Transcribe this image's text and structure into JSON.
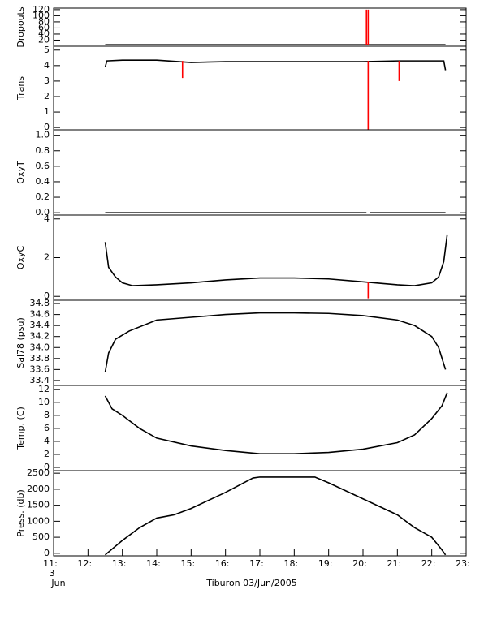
{
  "chart_data": [
    {
      "type": "line",
      "ylabel": "Dropouts",
      "xlim": [
        11,
        23
      ],
      "ylim": [
        0,
        125
      ],
      "yticks": [
        20,
        40,
        60,
        80,
        100,
        120
      ],
      "series": [
        {
          "color": "#000000",
          "x": [
            12.5,
            22.4
          ],
          "values": [
            5,
            5
          ]
        },
        {
          "color": "#ff0000",
          "x": [
            20.1,
            20.1,
            20.11,
            20.15,
            20.15
          ],
          "values": [
            5,
            120,
            null,
            5,
            120
          ]
        }
      ]
    },
    {
      "type": "line",
      "ylabel": "Trans",
      "xlim": [
        11,
        23
      ],
      "ylim": [
        -0.15,
        5.25
      ],
      "yticks": [
        0,
        1,
        2,
        3,
        4,
        5
      ],
      "series": [
        {
          "color": "#000000",
          "x": [
            12.5,
            12.55,
            13,
            14,
            15,
            16,
            17,
            18,
            19,
            20,
            21,
            22,
            22.35,
            22.4
          ],
          "values": [
            3.9,
            4.3,
            4.35,
            4.35,
            4.2,
            4.25,
            4.25,
            4.25,
            4.25,
            4.25,
            4.3,
            4.3,
            4.3,
            3.7
          ]
        },
        {
          "color": "#ff0000",
          "x": [
            14.75,
            14.75,
            14.76,
            20.15,
            20.15,
            20.16,
            21.05,
            21.05
          ],
          "values": [
            4.3,
            3.2,
            null,
            4.3,
            -0.15,
            null,
            4.3,
            3.0
          ]
        }
      ]
    },
    {
      "type": "line",
      "ylabel": "OxyT",
      "xlim": [
        11,
        23
      ],
      "ylim": [
        -0.03,
        1.07
      ],
      "yticks": [
        {
          "value": 0,
          "label": "0.0"
        },
        0.2,
        0.4,
        0.6,
        0.8,
        {
          "value": 1,
          "label": "1.0"
        }
      ],
      "series": [
        {
          "color": "#000000",
          "x": [
            12.5,
            20.1,
            20.15,
            20.2,
            22.4
          ],
          "values": [
            0,
            0,
            null,
            0,
            0
          ]
        }
      ]
    },
    {
      "type": "line",
      "ylabel": "OxyC",
      "xlim": [
        11,
        23
      ],
      "ylim": [
        -0.2,
        4.2
      ],
      "yticks": [
        0,
        2,
        4
      ],
      "series": [
        {
          "color": "#000000",
          "x": [
            12.5,
            12.6,
            12.8,
            13,
            13.3,
            14,
            15,
            16,
            17,
            18,
            19,
            20,
            21,
            21.5,
            22,
            22.2,
            22.35,
            22.45
          ],
          "values": [
            2.8,
            1.5,
            1.0,
            0.7,
            0.55,
            0.6,
            0.7,
            0.85,
            0.95,
            0.95,
            0.9,
            0.75,
            0.6,
            0.55,
            0.7,
            1.0,
            1.8,
            3.2
          ]
        },
        {
          "color": "#ff0000",
          "x": [
            20.15,
            20.15
          ],
          "values": [
            0.75,
            -0.1
          ]
        }
      ]
    },
    {
      "type": "line",
      "ylabel": "Sal78 (psu)",
      "xlim": [
        11,
        23
      ],
      "ylim": [
        33.31,
        34.86
      ],
      "yticks": [
        33.4,
        33.6,
        33.8,
        {
          "value": 34,
          "label": "34.0"
        },
        34.2,
        34.4,
        34.6,
        34.8
      ],
      "series": [
        {
          "color": "#000000",
          "x": [
            12.5,
            12.6,
            12.8,
            13.2,
            14,
            15,
            16,
            17,
            18,
            19,
            20,
            21,
            21.5,
            22,
            22.2,
            22.4
          ],
          "values": [
            33.55,
            33.9,
            34.15,
            34.3,
            34.5,
            34.55,
            34.6,
            34.63,
            34.63,
            34.62,
            34.58,
            34.5,
            34.4,
            34.2,
            34.0,
            33.6
          ]
        }
      ]
    },
    {
      "type": "line",
      "ylabel": "Temp. (C)",
      "xlim": [
        11,
        23
      ],
      "ylim": [
        -0.5,
        12.6
      ],
      "yticks": [
        0,
        2,
        4,
        6,
        8,
        10,
        12
      ],
      "series": [
        {
          "color": "#000000",
          "x": [
            12.5,
            12.7,
            13,
            13.5,
            14,
            15,
            16,
            17,
            18,
            19,
            20,
            21,
            21.5,
            22,
            22.3,
            22.45
          ],
          "values": [
            11,
            9,
            8,
            6,
            4.5,
            3.3,
            2.6,
            2.1,
            2.1,
            2.3,
            2.8,
            3.8,
            5,
            7.5,
            9.5,
            11.5
          ]
        }
      ]
    },
    {
      "type": "line",
      "ylabel": "Press. (db)",
      "xlabel": "Tiburon 03/Jun/2005",
      "x_sublabels": [
        "3",
        "Jun"
      ],
      "xlim": [
        11,
        23
      ],
      "ylim": [
        -80,
        2580
      ],
      "yticks": [
        0,
        500,
        1000,
        1500,
        2000,
        2500
      ],
      "xticks": [
        {
          "value": 11,
          "label": "11:"
        },
        {
          "value": 12,
          "label": "12:"
        },
        {
          "value": 13,
          "label": "13:"
        },
        {
          "value": 14,
          "label": "14:"
        },
        {
          "value": 15,
          "label": "15:"
        },
        {
          "value": 16,
          "label": "16:"
        },
        {
          "value": 17,
          "label": "17:"
        },
        {
          "value": 18,
          "label": "18:"
        },
        {
          "value": 19,
          "label": "19:"
        },
        {
          "value": 20,
          "label": "20:"
        },
        {
          "value": 21,
          "label": "21:"
        },
        {
          "value": 22,
          "label": "22:"
        },
        {
          "value": 23,
          "label": "23:"
        }
      ],
      "series": [
        {
          "color": "#000000",
          "x": [
            12.5,
            13,
            13.5,
            14,
            14.5,
            15,
            16,
            16.8,
            17,
            18.6,
            19,
            20,
            21,
            21.5,
            22,
            22.3,
            22.4
          ],
          "values": [
            -50,
            400,
            800,
            1100,
            1200,
            1400,
            1900,
            2350,
            2380,
            2380,
            2200,
            1700,
            1200,
            800,
            500,
            100,
            -50
          ]
        }
      ]
    }
  ]
}
